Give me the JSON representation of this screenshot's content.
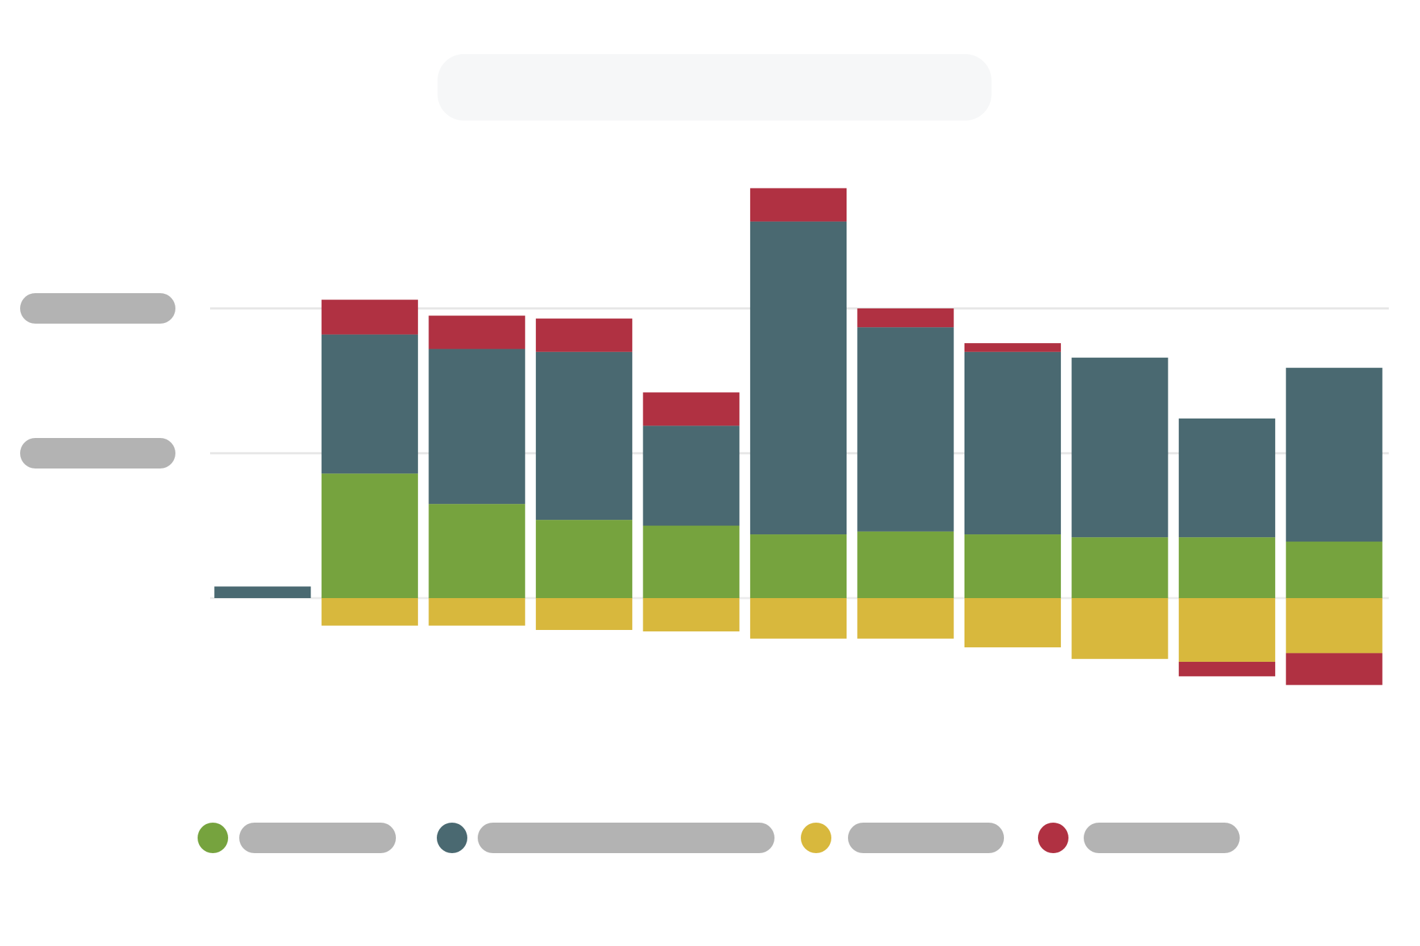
{
  "chart_data": {
    "type": "stacked_bar",
    "categories": [
      null,
      null,
      null,
      null,
      null,
      null,
      null,
      null,
      null,
      null,
      null
    ],
    "series": [
      {
        "color": "#76a33e",
        "values": [
          0,
          0.86,
          0.65,
          0.54,
          0.5,
          0.44,
          0.46,
          0.44,
          0.42,
          0.42,
          0.39
        ]
      },
      {
        "color": "#4a6971",
        "values": [
          0.08,
          0.96,
          1.07,
          1.16,
          0.69,
          2.16,
          1.41,
          1.26,
          1.24,
          0.82,
          1.2
        ]
      },
      {
        "color": "#d8b83d",
        "values": [
          0,
          -0.19,
          -0.19,
          -0.22,
          -0.23,
          -0.28,
          -0.28,
          -0.34,
          -0.42,
          -0.44,
          -0.38
        ]
      },
      {
        "color": "#b03142",
        "values": [
          0,
          0.24,
          0.23,
          0.23,
          0.23,
          0.23,
          0.13,
          0.06,
          0,
          -0.1,
          -0.22
        ]
      }
    ],
    "ylim": [
      -1,
      3
    ],
    "yticks": [
      1,
      2
    ],
    "grid": true
  }
}
